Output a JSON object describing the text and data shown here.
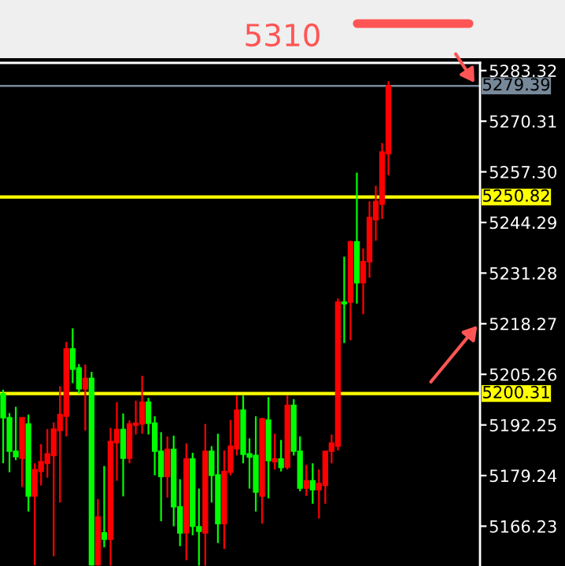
{
  "chart_data": {
    "type": "candlestick",
    "categories": [
      null,
      null,
      null,
      null,
      null,
      null,
      null,
      null,
      null,
      null,
      null,
      null,
      null,
      null,
      null,
      null,
      null,
      null,
      null,
      null,
      null,
      null,
      null,
      null,
      null,
      null,
      null,
      null,
      null,
      null,
      null,
      null,
      null,
      null,
      null,
      null,
      null,
      null,
      null,
      null,
      null,
      null,
      null,
      null,
      null,
      null,
      null,
      null,
      null,
      null,
      null,
      null,
      null,
      null,
      null,
      null,
      null,
      null,
      null,
      null,
      null,
      null,
      null,
      null,
      null,
      null,
      null,
      null,
      null,
      null,
      null,
      null,
      null,
      null,
      null,
      null
    ],
    "ohlc": [
      [
        5200.3,
        5201.3,
        5182.4,
        5194.1
      ],
      [
        5194.1,
        5195.3,
        5180.1,
        5185.5
      ],
      [
        5185.5,
        5196.9,
        5183.2,
        5184.1
      ],
      [
        5183.7,
        5194.1,
        5176.3,
        5194.1
      ],
      [
        5192.5,
        5194.9,
        5170.0,
        5174.0
      ],
      [
        5174.0,
        5182.4,
        5156.2,
        5180.8
      ],
      [
        5180.3,
        5187.3,
        5176.7,
        5182.8
      ],
      [
        5182.4,
        5191.2,
        5178.7,
        5184.8
      ],
      [
        5184.4,
        5192.9,
        5158.5,
        5191.2
      ],
      [
        5190.8,
        5202.2,
        5172.3,
        5194.9
      ],
      [
        5194.5,
        5213.6,
        5189.3,
        5211.8
      ],
      [
        5211.8,
        5217.1,
        5203.0,
        5206.6
      ],
      [
        5206.9,
        5207.9,
        5200.3,
        5201.5
      ],
      [
        5201.5,
        5207.8,
        5190.8,
        5204.2
      ],
      [
        5204.2,
        5205.9,
        5156.1,
        5156.3
      ],
      [
        5156.3,
        5173.2,
        5156.1,
        5168.6
      ],
      [
        5164.5,
        5181.7,
        5160.8,
        5162.9
      ],
      [
        5162.9,
        5191.5,
        5156.1,
        5188.0
      ],
      [
        5187.7,
        5198.1,
        5177.9,
        5191.1
      ],
      [
        5191.1,
        5195.2,
        5173.9,
        5183.7
      ],
      [
        5183.7,
        5193.4,
        5182.4,
        5192.5
      ],
      [
        5192.2,
        5198.5,
        5189.8,
        5192.7
      ],
      [
        5192.5,
        5204.9,
        5190.0,
        5198.1
      ],
      [
        5198.1,
        5199.2,
        5189.8,
        5192.7
      ],
      [
        5192.7,
        5194.5,
        5179.3,
        5185.5
      ],
      [
        5185.5,
        5190.4,
        5167.5,
        5179.0
      ],
      [
        5179.0,
        5189.3,
        5173.6,
        5186.0
      ],
      [
        5186.0,
        5189.5,
        5166.2,
        5171.2
      ],
      [
        5171.2,
        5178.3,
        5161.1,
        5164.5
      ],
      [
        5164.5,
        5187.5,
        5157.5,
        5183.5
      ],
      [
        5183.5,
        5185.1,
        5163.9,
        5166.2
      ],
      [
        5166.1,
        5175.9,
        5156.1,
        5164.9
      ],
      [
        5164.5,
        5192.5,
        5156.1,
        5185.5
      ],
      [
        5185.5,
        5186.8,
        5172.3,
        5179.3
      ],
      [
        5179.4,
        5190.0,
        5161.9,
        5166.9
      ],
      [
        5166.9,
        5185.7,
        5160.4,
        5180.3
      ],
      [
        5180.1,
        5193.5,
        5179.3,
        5186.8
      ],
      [
        5186.1,
        5199.8,
        5184.4,
        5196.1
      ],
      [
        5196.1,
        5199.8,
        5182.4,
        5184.7
      ],
      [
        5184.8,
        5188.8,
        5175.9,
        5184.0
      ],
      [
        5184.4,
        5194.5,
        5170.0,
        5175.0
      ],
      [
        5174.0,
        5194.1,
        5166.9,
        5193.8
      ],
      [
        5193.5,
        5199.4,
        5173.4,
        5183.1
      ],
      [
        5182.8,
        5190.0,
        5180.8,
        5183.5
      ],
      [
        5183.5,
        5188.4,
        5180.3,
        5181.3
      ],
      [
        5181.4,
        5199.8,
        5180.8,
        5197.3
      ],
      [
        5197.3,
        5198.9,
        5184.4,
        5185.5
      ],
      [
        5185.5,
        5189.3,
        5175.2,
        5176.0
      ],
      [
        5176.0,
        5182.0,
        5174.0,
        5177.9
      ],
      [
        5177.9,
        5182.4,
        5172.0,
        5175.6
      ],
      [
        5175.6,
        5180.8,
        5168.2,
        5177.2
      ],
      [
        5176.7,
        5185.5,
        5172.0,
        5185.5
      ],
      [
        5185.5,
        5189.8,
        5182.4,
        5187.6
      ],
      [
        5186.8,
        5224.8,
        5185.7,
        5223.8
      ],
      [
        5223.8,
        5235.5,
        5213.3,
        5223.4
      ],
      [
        5223.8,
        5239.6,
        5214.0,
        5239.3
      ],
      [
        5239.3,
        5257.1,
        5223.4,
        5228.8
      ],
      [
        5228.8,
        5237.6,
        5220.7,
        5234.2
      ],
      [
        5234.2,
        5249.7,
        5230.1,
        5245.6
      ],
      [
        5245.0,
        5253.7,
        5239.6,
        5249.7
      ],
      [
        5249.0,
        5264.7,
        5245.2,
        5262.4
      ],
      [
        5262.0,
        5280.6,
        5256.4,
        5279.4
      ],
      null,
      null,
      null,
      null,
      null,
      null,
      null,
      null,
      null,
      null,
      null,
      null,
      null,
      null
    ],
    "colors": [
      "#00ff00",
      "#00ff00",
      "#00ff00",
      "#ff0000",
      "#00ff00",
      "#ff0000",
      "#ff0000",
      "#ff0000",
      "#ff0000",
      "#ff0000",
      "#ff0000",
      "#00ff00",
      "#00ff00",
      "#ff0000",
      "#00ff00",
      "#ff0000",
      "#00ff00",
      "#ff0000",
      "#ff0000",
      "#00ff00",
      "#ff0000",
      "#ff0000",
      "#ff0000",
      "#00ff00",
      "#00ff00",
      "#00ff00",
      "#ff0000",
      "#00ff00",
      "#00ff00",
      "#ff0000",
      "#00ff00",
      "#00ff00",
      "#ff0000",
      "#00ff00",
      "#00ff00",
      "#ff0000",
      "#ff0000",
      "#ff0000",
      "#00ff00",
      "#00ff00",
      "#00ff00",
      "#ff0000",
      "#00ff00",
      "#ff0000",
      "#00ff00",
      "#ff0000",
      "#00ff00",
      "#00ff00",
      "#ff0000",
      "#00ff00",
      "#ff0000",
      "#ff0000",
      "#ff0000",
      "#ff0000",
      "#00ff00",
      "#ff0000",
      "#00ff00",
      "#ff0000",
      "#ff0000",
      "#ff0000",
      "#ff0000",
      "#ff0000",
      null,
      null,
      null,
      null,
      null,
      null,
      null,
      null,
      null,
      null,
      null,
      null,
      null,
      null
    ],
    "ylim": [
      5156.0,
      5285.3
    ],
    "yticks": [
      5283.32,
      5270.31,
      {
        "value": 5257.3,
        "label": "5257.30"
      },
      5244.29,
      5231.28,
      5218.27,
      5205.26,
      5192.25,
      5179.24,
      5166.23
    ],
    "ref_lines": [
      {
        "axis": "y",
        "value": 5250.82,
        "label": "5250.82",
        "color": "#ffff00"
      },
      {
        "axis": "y",
        "value": 5200.31,
        "label": "5200.31",
        "color": "#ffff00"
      },
      {
        "axis": "y",
        "value": 5279.39,
        "label": "5279.39",
        "color": "#778899"
      }
    ],
    "annotations": [
      "5310"
    ],
    "tick_labels": "y",
    "grid": false,
    "legend": false
  }
}
